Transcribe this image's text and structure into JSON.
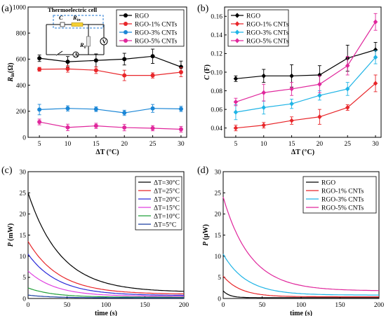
{
  "chart_data": [
    {
      "panel": "(a)",
      "type": "line",
      "xlabel": "ΔT (°C)",
      "ylabel": "R_in(Ω)",
      "xlim": [
        3,
        31
      ],
      "ylim": [
        0,
        1000
      ],
      "x": [
        5,
        10,
        15,
        20,
        25,
        30
      ],
      "xticks": [
        "5",
        "10",
        "15",
        "20",
        "25",
        "30"
      ],
      "yticks": [
        "0",
        "200",
        "400",
        "600",
        "800",
        "1000"
      ],
      "legend_position": "top-right",
      "inset_title": "Thermoelectric cell",
      "inset_labels": {
        "c": "C",
        "rin": "R",
        "rin_sub": "in",
        "ro": "R",
        "ro_sub": "0",
        "v": "V",
        "a": "A"
      },
      "series": [
        {
          "name": "RGO",
          "color": "#000000",
          "marker": "circle",
          "values": [
            607,
            580,
            590,
            600,
            622,
            540
          ],
          "errors": [
            25,
            40,
            50,
            45,
            55,
            45
          ]
        },
        {
          "name": "RGO-1% CNTs",
          "color": "#e8262a",
          "marker": "circle",
          "values": [
            522,
            525,
            515,
            475,
            475,
            500
          ],
          "errors": [
            15,
            25,
            25,
            40,
            20,
            35
          ]
        },
        {
          "name": "RGO-3% CNTs",
          "color": "#1a86d6",
          "marker": "circle",
          "values": [
            213,
            222,
            216,
            188,
            222,
            218
          ],
          "errors": [
            40,
            20,
            18,
            20,
            30,
            20
          ]
        },
        {
          "name": "RGO-5% CNTs",
          "color": "#e0279c",
          "marker": "circle",
          "values": [
            118,
            76,
            88,
            75,
            70,
            62
          ],
          "errors": [
            22,
            25,
            20,
            25,
            20,
            22
          ]
        }
      ]
    },
    {
      "panel": "(b)",
      "type": "line",
      "xlabel": "ΔT (°C)",
      "ylabel": "C (F)",
      "xlim": [
        3,
        31
      ],
      "ylim": [
        0.03,
        0.17
      ],
      "x": [
        5,
        10,
        15,
        20,
        25,
        30
      ],
      "xticks": [
        "5",
        "10",
        "15",
        "20",
        "25",
        "30"
      ],
      "yticks": [
        "0.04",
        "0.06",
        "0.08",
        "0.10",
        "0.12",
        "0.14",
        "0.16"
      ],
      "legend_position": "top-left",
      "series": [
        {
          "name": "RGO",
          "color": "#000000",
          "marker": "diamond",
          "values": [
            0.093,
            0.096,
            0.096,
            0.097,
            0.115,
            0.124
          ],
          "errors": [
            0.003,
            0.007,
            0.012,
            0.01,
            0.014,
            0.008
          ]
        },
        {
          "name": "RGO-1% CNTs",
          "color": "#e8262a",
          "marker": "diamond",
          "values": [
            0.04,
            0.043,
            0.048,
            0.052,
            0.062,
            0.088
          ],
          "errors": [
            0.003,
            0.003,
            0.004,
            0.008,
            0.003,
            0.009
          ]
        },
        {
          "name": "RGO-3% CNTs",
          "color": "#1fb4e6",
          "marker": "diamond",
          "values": [
            0.057,
            0.062,
            0.066,
            0.075,
            0.082,
            0.116
          ],
          "errors": [
            0.008,
            0.007,
            0.005,
            0.005,
            0.007,
            0.007
          ]
        },
        {
          "name": "RGO-5% CNTs",
          "color": "#e0279c",
          "marker": "diamond",
          "values": [
            0.068,
            0.078,
            0.082,
            0.087,
            0.107,
            0.154
          ],
          "errors": [
            0.004,
            0.009,
            0.007,
            0.009,
            0.01,
            0.009
          ]
        }
      ]
    },
    {
      "panel": "(c)",
      "type": "line",
      "xlabel": "time (s)",
      "ylabel": "P (mW)",
      "xlim": [
        0,
        200
      ],
      "ylim": [
        0,
        30
      ],
      "xticks": [
        "0",
        "50",
        "100",
        "150",
        "200"
      ],
      "yticks": [
        "0",
        "5",
        "10",
        "15",
        "20",
        "25",
        "30"
      ],
      "legend_position": "top-right",
      "series": [
        {
          "name": "ΔT=30°C",
          "color": "#000000",
          "p0": 25,
          "tau": 42,
          "pinf": 1.5
        },
        {
          "name": "ΔT=25°C",
          "color": "#e8262a",
          "p0": 13.5,
          "tau": 40,
          "pinf": 1.0
        },
        {
          "name": "ΔT=20°C",
          "color": "#2b2bd9",
          "p0": 10.5,
          "tau": 38,
          "pinf": 0.7
        },
        {
          "name": "ΔT=15°C",
          "color": "#e040e0",
          "p0": 6.5,
          "tau": 35,
          "pinf": 0.5
        },
        {
          "name": "ΔT=10°C",
          "color": "#22a03a",
          "p0": 2.5,
          "tau": 32,
          "pinf": 0.3
        },
        {
          "name": "ΔT=5°C",
          "color": "#1a3fa0",
          "p0": 0.8,
          "tau": 30,
          "pinf": 0.15
        }
      ]
    },
    {
      "panel": "(d)",
      "type": "line",
      "xlabel": "time (s)",
      "ylabel": "P (μW)",
      "xlim": [
        0,
        200
      ],
      "ylim": [
        0,
        30
      ],
      "xticks": [
        "0",
        "50",
        "100",
        "150",
        "200"
      ],
      "yticks": [
        "0",
        "5",
        "10",
        "15",
        "20",
        "25",
        "30"
      ],
      "legend_position": "top-right",
      "series": [
        {
          "name": "RGO",
          "color": "#000000",
          "p0": 1.8,
          "tau": 8,
          "pinf": 0.2
        },
        {
          "name": "RGO-1% CNTs",
          "color": "#e8262a",
          "p0": 5.3,
          "tau": 22,
          "pinf": 0.4
        },
        {
          "name": "RGO-3% CNTs",
          "color": "#1fb4e6",
          "p0": 10.5,
          "tau": 30,
          "pinf": 0.8
        },
        {
          "name": "RGO-5% CNTs",
          "color": "#e0279c",
          "p0": 24,
          "tau": 35,
          "pinf": 1.8
        }
      ]
    }
  ]
}
